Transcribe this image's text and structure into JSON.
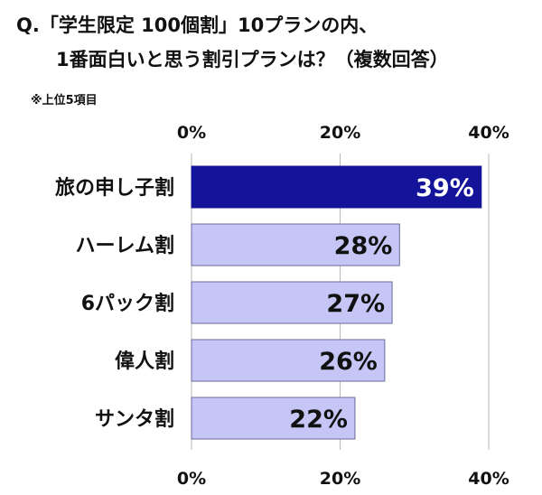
{
  "question": {
    "line1": "Q.「学生限定 100個割」10プランの内、",
    "line2": "1番面白いと思う割引プランは？（複数回答）"
  },
  "note": "※上位5項目",
  "chart_data": {
    "type": "bar",
    "orientation": "horizontal",
    "categories": [
      "旅の申し子割",
      "ハーレム割",
      "6パック割",
      "偉人割",
      "サンタ割"
    ],
    "values": [
      39,
      28,
      27,
      26,
      22
    ],
    "value_labels": [
      "39%",
      "28%",
      "27%",
      "26%",
      "22%"
    ],
    "xlim": [
      0,
      40
    ],
    "ticks": [
      0,
      20,
      40
    ],
    "tick_labels": [
      "0%",
      "20%",
      "40%"
    ],
    "tick_label_positions": [
      "top",
      "bottom"
    ],
    "grid": true,
    "highlight_index": 0,
    "colors": {
      "highlight_fill": "#14149a",
      "highlight_text": "#ffffff",
      "bar_fill": "#c6c6f6",
      "bar_stroke": "#6a6a9a",
      "bar_text": "#111111",
      "grid": "#b9b9b9"
    }
  }
}
